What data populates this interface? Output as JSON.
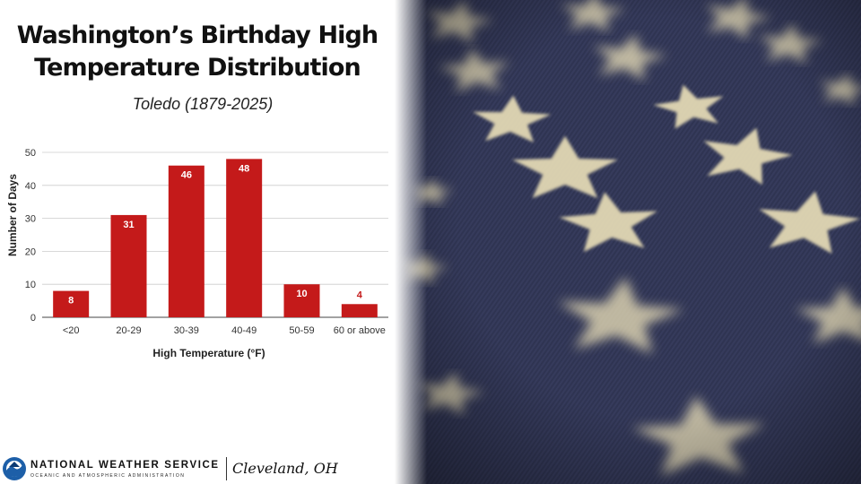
{
  "title": {
    "line1": "Washington’s Birthday High",
    "line2": "Temperature Distribution"
  },
  "subtitle": "Toledo (1879-2025)",
  "chart_data": {
    "type": "bar",
    "categories": [
      "<20",
      "20-29",
      "30-39",
      "40-49",
      "50-59",
      "60 or above"
    ],
    "values": [
      8,
      31,
      46,
      48,
      10,
      4
    ],
    "title": "",
    "xlabel": "High Temperature (°F)",
    "ylabel": "Number of Days",
    "ylim": [
      0,
      50
    ],
    "yticks": [
      0,
      10,
      20,
      30,
      40,
      50
    ],
    "grid": true,
    "legend": "none",
    "bar_color": "#c41a1a",
    "label_color_inside": "#ffffff",
    "label_color_outside": "#c41a1a"
  },
  "footer": {
    "agency": "NATIONAL WEATHER SERVICE",
    "agency_sub": "OCEANIC AND ATMOSPHERIC ADMINISTRATION",
    "office": "Cleveland, OH",
    "logo_icon": "noaa-logo-icon"
  },
  "photo": {
    "description_icon": "flag-stars-photo",
    "field_color": "#2f3452",
    "star_color": "#e2d8b4"
  }
}
